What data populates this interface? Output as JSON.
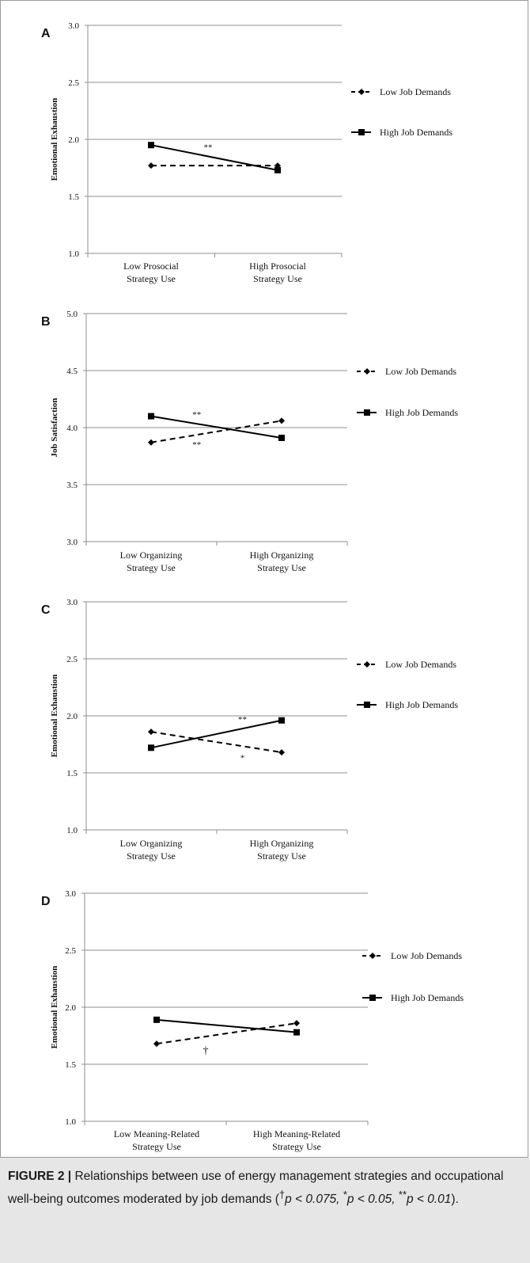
{
  "chart_data": [
    {
      "type": "line",
      "panel": "A",
      "ylabel": "Emotional Exhaustion",
      "categories": [
        "Low Prosocial\nStrategy Use",
        "High Prosocial\nStrategy Use"
      ],
      "ylim": [
        1.0,
        3.0
      ],
      "yticks": [
        "1.0",
        "1.5",
        "2.0",
        "2.5",
        "3.0"
      ],
      "series": [
        {
          "name": "Low Job Demands",
          "values": [
            1.77,
            1.77
          ],
          "style": "dashed",
          "marker": "diamond"
        },
        {
          "name": "High Job Demands",
          "values": [
            1.95,
            1.73
          ],
          "style": "solid",
          "marker": "square"
        }
      ],
      "annotations": [
        {
          "text": "**",
          "series": 1,
          "pos": 0.45,
          "offset": -8
        }
      ],
      "grid": true,
      "legend_position": "right"
    },
    {
      "type": "line",
      "panel": "B",
      "ylabel": "Job Satisfaction",
      "categories": [
        "Low Organizing\nStrategy Use",
        "High Organizing\nStrategy Use"
      ],
      "ylim": [
        3.0,
        5.0
      ],
      "yticks": [
        "3.0",
        "3.5",
        "4.0",
        "4.5",
        "5.0"
      ],
      "series": [
        {
          "name": "Low Job Demands",
          "values": [
            3.87,
            4.06
          ],
          "style": "dashed",
          "marker": "diamond"
        },
        {
          "name": "High Job Demands",
          "values": [
            4.1,
            3.91
          ],
          "style": "solid",
          "marker": "square"
        }
      ],
      "annotations": [
        {
          "text": "**",
          "series": 1,
          "pos": 0.35,
          "offset": -8
        },
        {
          "text": "**",
          "series": 0,
          "pos": 0.35,
          "offset": 16
        }
      ],
      "grid": true,
      "legend_position": "right"
    },
    {
      "type": "line",
      "panel": "C",
      "ylabel": "Emotional Exhaustion",
      "categories": [
        "Low Organizing\nStrategy Use",
        "High Organizing\nStrategy Use"
      ],
      "ylim": [
        1.0,
        3.0
      ],
      "yticks": [
        "1.0",
        "1.5",
        "2.0",
        "2.5",
        "3.0"
      ],
      "series": [
        {
          "name": "Low Job Demands",
          "values": [
            1.86,
            1.68
          ],
          "style": "dashed",
          "marker": "diamond"
        },
        {
          "name": "High Job Demands",
          "values": [
            1.72,
            1.96
          ],
          "style": "solid",
          "marker": "square"
        }
      ],
      "annotations": [
        {
          "text": "**",
          "series": 1,
          "pos": 0.7,
          "offset": -8
        },
        {
          "text": "*",
          "series": 0,
          "pos": 0.7,
          "offset": 18
        }
      ],
      "grid": true,
      "legend_position": "right"
    },
    {
      "type": "line",
      "panel": "D",
      "ylabel": "Emotional Exhaustion",
      "categories": [
        "Low Meaning-Related\nStrategy Use",
        "High Meaning-Related\nStrategy Use"
      ],
      "ylim": [
        1.0,
        3.0
      ],
      "yticks": [
        "1.0",
        "1.5",
        "2.0",
        "2.5",
        "3.0"
      ],
      "series": [
        {
          "name": "Low Job Demands",
          "values": [
            1.68,
            1.86
          ],
          "style": "dashed",
          "marker": "diamond"
        },
        {
          "name": "High Job Demands",
          "values": [
            1.89,
            1.78
          ],
          "style": "solid",
          "marker": "square"
        }
      ],
      "annotations": [
        {
          "text": "†",
          "series": 0,
          "pos": 0.35,
          "offset": 22
        }
      ],
      "grid": true,
      "legend_position": "right"
    }
  ],
  "caption": {
    "label": "FIGURE 2 |",
    "text1": " Relationships between use of energy management strategies and occupational well-being outcomes moderated by job demands (",
    "dagger": "†",
    "p1": "p < 0.075,",
    "star1": "*",
    "p2": "p < 0.05, ",
    "star2": "**",
    "p3": "p < 0.01",
    "end": ")."
  }
}
